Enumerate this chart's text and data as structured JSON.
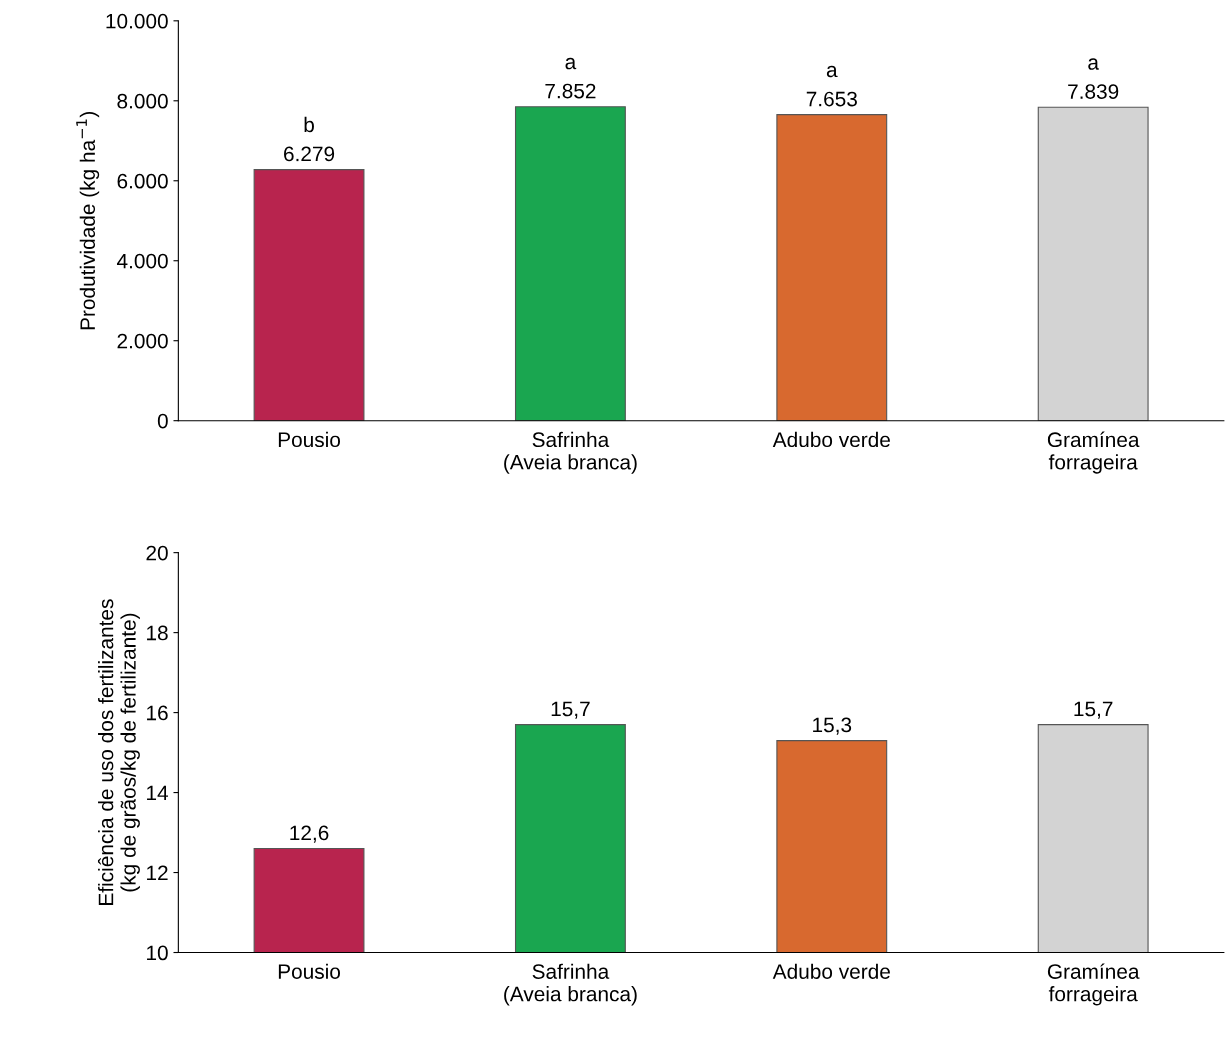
{
  "chart_data": [
    {
      "type": "bar",
      "ylabel": "Produtividade (kg ha$^{−1}$)",
      "categories": [
        "Pousio",
        "Safrinha\n(Aveia branca)",
        "Adubo verde",
        "Gramínea\nforrageira"
      ],
      "values": [
        6279,
        7852,
        7653,
        7839
      ],
      "colors": [
        "#b8244e",
        "#1aa650",
        "#d8692f",
        "#d3d3d3"
      ],
      "value_labels": [
        "6.279",
        "7.852",
        "7.653",
        "7.839"
      ],
      "ylim": [
        0,
        10000
      ],
      "yticks": [
        {
          "value": 0,
          "label": "0"
        },
        {
          "value": 2000,
          "label": "2.000"
        },
        {
          "value": 4000,
          "label": "4.000"
        },
        {
          "value": 6000,
          "label": "6.000"
        },
        {
          "value": 8000,
          "label": "8.000"
        },
        {
          "value": 10000,
          "label": "10.000"
        }
      ],
      "grid": false,
      "legend": false,
      "annotations": [
        {
          "text": "b",
          "x": "Pousio",
          "y": 6279
        },
        {
          "text": "a",
          "x": "Safrinha\n(Aveia branca)",
          "y": 7852
        },
        {
          "text": "a",
          "x": "Adubo verde",
          "y": 7653
        },
        {
          "text": "a",
          "x": "Gramínea\nforrageira",
          "y": 7839
        }
      ]
    },
    {
      "type": "bar",
      "ylabel": "Eficiência de uso dos fertilizantes\n(kg de grãos/kg de fertilizante)",
      "categories": [
        "Pousio",
        "Safrinha\n(Aveia branca)",
        "Adubo verde",
        "Gramínea\nforrageira"
      ],
      "values": [
        12.6,
        15.7,
        15.3,
        15.7
      ],
      "colors": [
        "#b8244e",
        "#1aa650",
        "#d8692f",
        "#d3d3d3"
      ],
      "value_labels": [
        "12,6",
        "15,7",
        "15,3",
        "15,7"
      ],
      "ylim": [
        10,
        20
      ],
      "yticks": [
        10,
        12,
        14,
        16,
        18,
        20
      ],
      "grid": false,
      "legend": false
    }
  ]
}
